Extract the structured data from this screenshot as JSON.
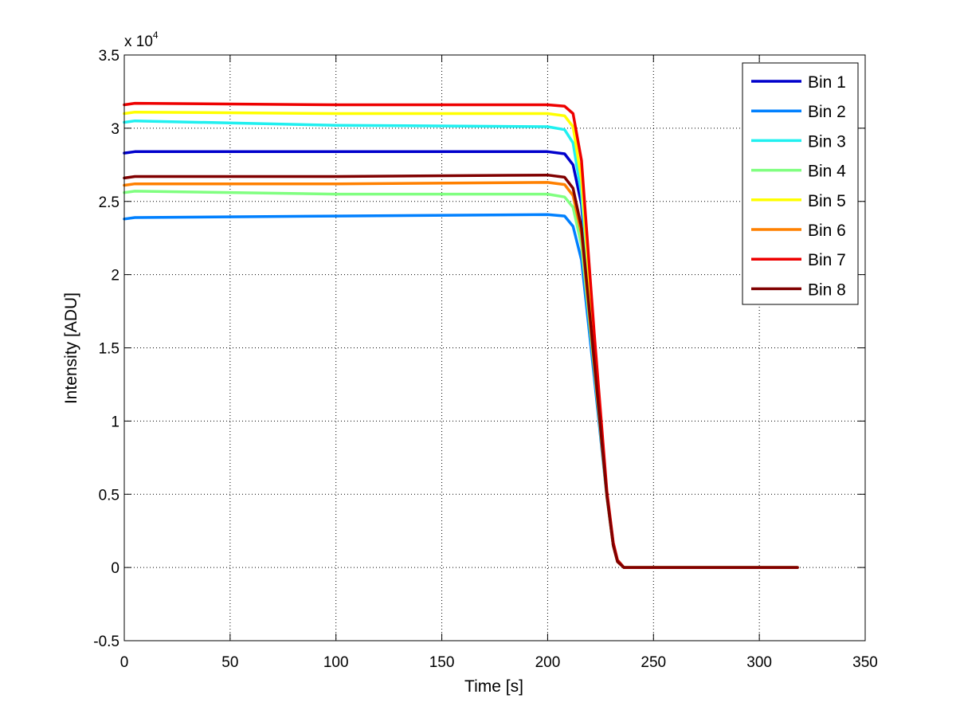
{
  "chart_data": {
    "type": "line",
    "title": "",
    "xlabel": "Time [s]",
    "ylabel": "Intensity [ADU]",
    "y_multiplier_label": "x 10",
    "y_multiplier_exponent": "4",
    "xlim": [
      0,
      350
    ],
    "ylim": [
      -5000,
      35000
    ],
    "x_ticks": [
      0,
      50,
      100,
      150,
      200,
      250,
      300,
      350
    ],
    "x_tick_labels": [
      "0",
      "50",
      "100",
      "150",
      "200",
      "250",
      "300",
      "350"
    ],
    "y_ticks": [
      -5000,
      0,
      5000,
      10000,
      15000,
      20000,
      25000,
      30000,
      35000
    ],
    "y_tick_labels": [
      "-0.5",
      "0",
      "0.5",
      "1",
      "1.5",
      "2",
      "2.5",
      "3",
      "3.5"
    ],
    "grid": true,
    "legend_position": "top-right",
    "series": [
      {
        "name": "Bin 1",
        "color": "#0000cc",
        "x": [
          0,
          5,
          100,
          200,
          208,
          212,
          216,
          222,
          228,
          231,
          233,
          236,
          240,
          318
        ],
        "values": [
          28300,
          28400,
          28400,
          28400,
          28250,
          27500,
          24800,
          14500,
          5000,
          1600,
          500,
          0,
          0,
          0
        ]
      },
      {
        "name": "Bin 2",
        "color": "#0080ff",
        "x": [
          0,
          5,
          100,
          200,
          208,
          212,
          216,
          222,
          228,
          231,
          233,
          236,
          240,
          318
        ],
        "values": [
          23800,
          23900,
          24000,
          24100,
          24000,
          23300,
          21000,
          13000,
          4800,
          1500,
          400,
          0,
          0,
          0
        ]
      },
      {
        "name": "Bin 3",
        "color": "#20f0f0",
        "x": [
          0,
          5,
          100,
          200,
          208,
          212,
          216,
          222,
          228,
          231,
          233,
          236,
          240,
          318
        ],
        "values": [
          30400,
          30500,
          30200,
          30100,
          29900,
          29000,
          25500,
          14800,
          5000,
          1600,
          500,
          0,
          0,
          0
        ]
      },
      {
        "name": "Bin 4",
        "color": "#80ff80",
        "x": [
          0,
          5,
          100,
          200,
          208,
          212,
          216,
          222,
          228,
          231,
          233,
          236,
          240,
          318
        ],
        "values": [
          25600,
          25700,
          25500,
          25500,
          25300,
          24600,
          22000,
          13600,
          4800,
          1500,
          400,
          0,
          0,
          0
        ]
      },
      {
        "name": "Bin 5",
        "color": "#ffff00",
        "x": [
          0,
          5,
          100,
          200,
          208,
          212,
          216,
          222,
          228,
          231,
          233,
          236,
          240,
          318
        ],
        "values": [
          31000,
          31100,
          31000,
          31000,
          30850,
          30100,
          26500,
          15200,
          5100,
          1600,
          500,
          0,
          0,
          0
        ]
      },
      {
        "name": "Bin 6",
        "color": "#ff8000",
        "x": [
          0,
          5,
          100,
          200,
          208,
          212,
          216,
          222,
          228,
          231,
          233,
          236,
          240,
          318
        ],
        "values": [
          26100,
          26200,
          26200,
          26300,
          26150,
          25400,
          22800,
          13900,
          4900,
          1500,
          400,
          0,
          0,
          0
        ]
      },
      {
        "name": "Bin 7",
        "color": "#ee0000",
        "x": [
          0,
          5,
          100,
          200,
          208,
          212,
          216,
          222,
          228,
          231,
          233,
          236,
          240,
          318
        ],
        "values": [
          31600,
          31700,
          31600,
          31600,
          31500,
          31000,
          27800,
          16000,
          5200,
          1700,
          500,
          0,
          0,
          0
        ]
      },
      {
        "name": "Bin 8",
        "color": "#800000",
        "x": [
          0,
          5,
          100,
          200,
          208,
          212,
          216,
          222,
          228,
          231,
          233,
          236,
          240,
          318
        ],
        "values": [
          26600,
          26700,
          26700,
          26800,
          26650,
          25900,
          23200,
          14100,
          4900,
          1500,
          400,
          0,
          0,
          0
        ]
      }
    ]
  }
}
